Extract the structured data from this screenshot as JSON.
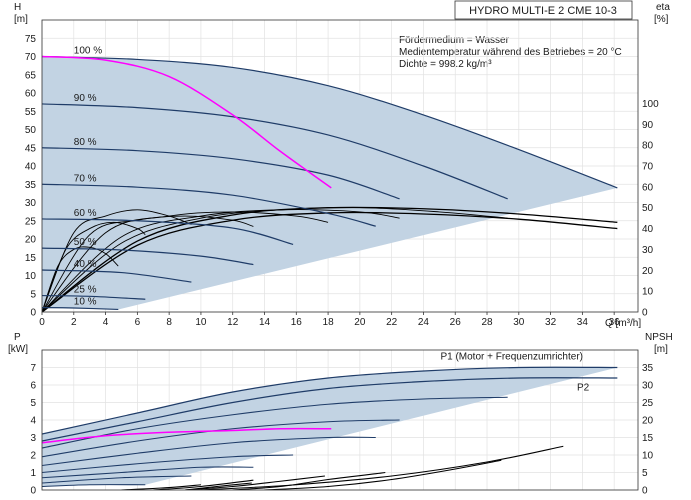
{
  "chart_data": [
    {
      "type": "line",
      "title": "HYDRO MULTI-E 2 CME 10-3",
      "xlabel": "Q [m³/h]",
      "ylabel": "H\n[m]",
      "y2label": "eta\n[%]",
      "xlim": [
        0,
        37.5
      ],
      "ylim": [
        0,
        80
      ],
      "y2lim": [
        0,
        140
      ],
      "x_ticks": [
        0,
        2,
        4,
        6,
        8,
        10,
        12,
        14,
        16,
        18,
        20,
        22,
        24,
        26,
        28,
        30,
        32,
        34,
        36
      ],
      "y_ticks": [
        0,
        5,
        10,
        15,
        20,
        25,
        30,
        35,
        40,
        45,
        50,
        55,
        60,
        65,
        70,
        75
      ],
      "y2_ticks": [
        0,
        10,
        20,
        30,
        40,
        50,
        60,
        70,
        80,
        90,
        100
      ],
      "notes": [
        "Fördermedium = Wasser",
        "Medientemperatur während des Betriebes = 20 °C",
        "Dichte = 998.2 kg/m³"
      ],
      "colors": {
        "speed_curve": "#1f3c68",
        "system_curve": "#ff00ff",
        "efficiency": "#000000",
        "range_fill": "#c2d3e3"
      },
      "series": [
        {
          "name": "100 %",
          "x": [
            0,
            6,
            12,
            18,
            24,
            30,
            36.2
          ],
          "values": [
            70,
            69.2,
            67,
            62,
            54,
            44.5,
            34
          ]
        },
        {
          "name": "90 %",
          "x": [
            0,
            6,
            12,
            18,
            24,
            29.3
          ],
          "values": [
            57,
            56,
            53.5,
            48.5,
            40,
            31
          ]
        },
        {
          "name": "80 %",
          "x": [
            0,
            6,
            12,
            18,
            22.5
          ],
          "values": [
            45,
            44.2,
            42,
            37.5,
            31
          ]
        },
        {
          "name": "70 %",
          "x": [
            0,
            6,
            12,
            18,
            21
          ],
          "values": [
            35,
            34.2,
            32,
            27,
            23.5
          ]
        },
        {
          "name": "60 %",
          "x": [
            0,
            6,
            12,
            15.8
          ],
          "values": [
            25.5,
            25,
            23,
            18.5
          ]
        },
        {
          "name": "50 %",
          "x": [
            0,
            5,
            10,
            13.3
          ],
          "values": [
            17.5,
            17,
            15.3,
            13
          ]
        },
        {
          "name": "40 %",
          "x": [
            0,
            5,
            9.4
          ],
          "values": [
            11.5,
            10.8,
            8.2
          ]
        },
        {
          "name": "25 %",
          "x": [
            0,
            3,
            6.5
          ],
          "values": [
            4.5,
            4.3,
            3.5
          ]
        },
        {
          "name": "10 %",
          "x": [
            0,
            2,
            4.8
          ],
          "values": [
            1.2,
            1.1,
            0.7
          ]
        }
      ],
      "system_curve": {
        "x": [
          0,
          4,
          8,
          12,
          15,
          18.2
        ],
        "values": [
          70,
          69,
          64.5,
          54,
          44,
          34
        ]
      },
      "efficiency_curves": [
        {
          "x": [
            0,
            6,
            12,
            18,
            24,
            30,
            36.2
          ],
          "values": [
            0,
            34,
            46.5,
            50,
            49.5,
            47,
            43
          ]
        },
        {
          "x": [
            0,
            6,
            12,
            18,
            24,
            30,
            36.2
          ],
          "values": [
            0,
            32,
            44,
            47.5,
            47,
            44.5,
            40
          ]
        },
        {
          "x": [
            0,
            5,
            10,
            15,
            20,
            25,
            29.3
          ],
          "values": [
            0,
            33,
            45,
            49,
            50,
            48,
            45
          ]
        },
        {
          "x": [
            0,
            5,
            10,
            15,
            20,
            22.5
          ],
          "values": [
            0,
            36,
            46,
            49,
            48,
            45
          ]
        },
        {
          "x": [
            0,
            4,
            8,
            12,
            16,
            18
          ],
          "values": [
            0,
            38,
            46,
            48,
            46,
            43
          ]
        },
        {
          "x": [
            0,
            3,
            6,
            9,
            12,
            13.3
          ],
          "values": [
            0,
            37,
            44,
            46,
            44,
            41
          ]
        },
        {
          "x": [
            0,
            2,
            4,
            6,
            8,
            9.4
          ],
          "values": [
            0,
            38,
            46,
            49,
            46,
            42
          ]
        },
        {
          "x": [
            0,
            1.5,
            3,
            4.5,
            6,
            6.5
          ],
          "values": [
            0,
            30,
            40,
            43,
            40,
            37
          ]
        },
        {
          "x": [
            0,
            1,
            2,
            3,
            4,
            4.8
          ],
          "values": [
            0,
            22,
            30,
            31,
            28,
            22
          ]
        }
      ]
    },
    {
      "type": "line",
      "title": "",
      "xlabel": "",
      "ylabel": "P\n[kW]",
      "y2label": "NPSH\n[m]",
      "xlim": [
        0,
        37.5
      ],
      "ylim": [
        0,
        8
      ],
      "y2lim": [
        0,
        40
      ],
      "y_ticks": [
        0,
        1,
        2,
        3,
        4,
        5,
        6,
        7
      ],
      "y2_ticks": [
        0,
        5,
        10,
        15,
        20,
        25,
        30,
        35
      ],
      "labels": [
        "P1 (Motor + Frequenzumrichter)",
        "P2"
      ],
      "series": [
        {
          "name": "P1 (Motor + Frequenzumrichter)",
          "x": [
            0,
            6,
            12,
            18,
            24,
            30,
            36.2
          ],
          "values": [
            3.2,
            4.4,
            5.6,
            6.4,
            6.8,
            7.0,
            7.0
          ]
        },
        {
          "name": "P2",
          "x": [
            0,
            6,
            12,
            18,
            24,
            30,
            36.2
          ],
          "values": [
            2.8,
            3.9,
            5.0,
            5.8,
            6.2,
            6.4,
            6.4
          ]
        }
      ],
      "speed_curves": [
        {
          "x": [
            0,
            6,
            12,
            18,
            24,
            29.3
          ],
          "values": [
            2.4,
            3.5,
            4.3,
            4.9,
            5.2,
            5.3
          ]
        },
        {
          "x": [
            0,
            6,
            12,
            18,
            22.5
          ],
          "values": [
            1.9,
            2.8,
            3.5,
            3.9,
            4.0
          ]
        },
        {
          "x": [
            0,
            6,
            12,
            18,
            21
          ],
          "values": [
            1.4,
            2.1,
            2.7,
            3.0,
            3.0
          ]
        },
        {
          "x": [
            0,
            6,
            12,
            15.8
          ],
          "values": [
            1.0,
            1.5,
            1.9,
            2.0
          ]
        },
        {
          "x": [
            0,
            5,
            10,
            13.3
          ],
          "values": [
            0.7,
            1.0,
            1.3,
            1.3
          ]
        },
        {
          "x": [
            0,
            5,
            9.4
          ],
          "values": [
            0.4,
            0.7,
            0.8
          ]
        },
        {
          "x": [
            0,
            3,
            6.5
          ],
          "values": [
            0.2,
            0.3,
            0.3
          ]
        }
      ],
      "system_power": {
        "x": [
          0,
          4,
          8,
          12,
          15,
          18.2
        ],
        "values": [
          2.7,
          3.1,
          3.3,
          3.4,
          3.5,
          3.5
        ]
      },
      "npsh_curves": [
        {
          "x": [
            10,
            16,
            22,
            28,
            32.8
          ],
          "values": [
            0,
            1.5,
            4,
            8,
            12.5
          ]
        },
        {
          "x": [
            14,
            18,
            22,
            26,
            28.9
          ],
          "values": [
            0,
            1,
            3,
            6,
            8.5
          ]
        },
        {
          "x": [
            12,
            15,
            18,
            21.6
          ],
          "values": [
            0,
            1,
            3,
            5
          ]
        },
        {
          "x": [
            9,
            12,
            15,
            17.8
          ],
          "values": [
            0,
            1,
            2.5,
            4
          ]
        },
        {
          "x": [
            7,
            10,
            13.3
          ],
          "values": [
            0,
            1,
            2.8
          ]
        },
        {
          "x": [
            9,
            11,
            13.2
          ],
          "values": [
            0,
            1,
            2
          ]
        },
        {
          "x": [
            5,
            8,
            10
          ],
          "values": [
            0,
            0.7,
            1.5
          ]
        }
      ]
    }
  ]
}
